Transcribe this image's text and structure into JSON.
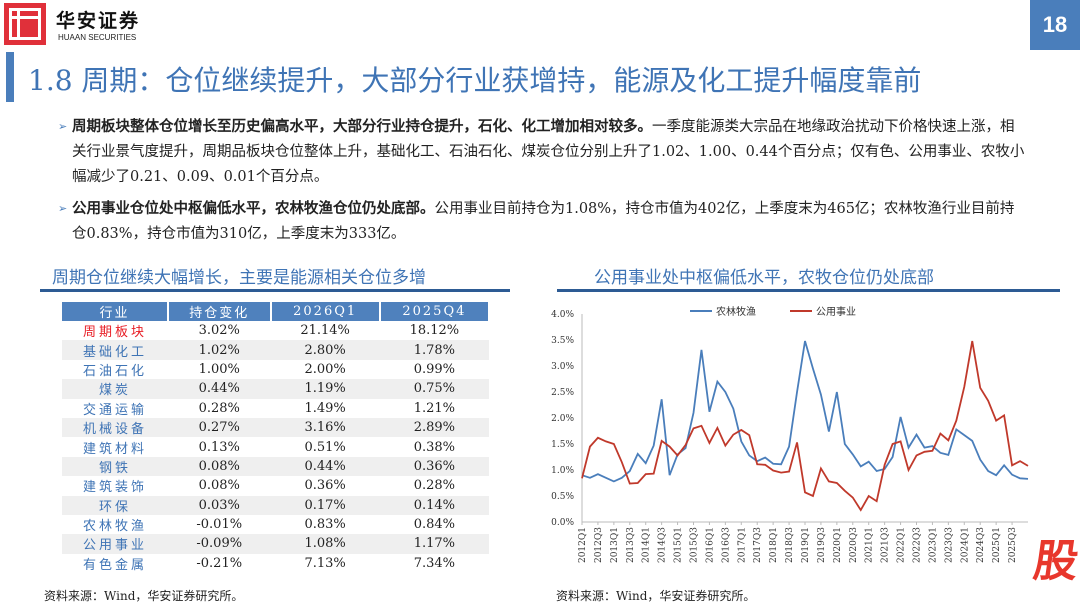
{
  "header": {
    "brand_cn": "华安证券",
    "brand_en": "HUAAN SECURITIES",
    "page_number": "18"
  },
  "title": "1.8 周期：仓位继续提升，大部分行业获增持，能源及化工提升幅度靠前",
  "bullets": [
    {
      "bold": "周期板块整体仓位增长至历史偏高水平，大部分行业持仓提升，石化、化工增加相对较多。",
      "text": "一季度能源类大宗品在地缘政治扰动下价格快速上涨，相关行业景气度提升，周期品板块仓位整体上升，基础化工、石油石化、煤炭仓位分别上升了1.02、1.00、0.44个百分点；仅有色、公用事业、农牧小幅减少了0.21、0.09、0.01个百分点。"
    },
    {
      "bold": "公用事业仓位处中枢偏低水平，农林牧渔仓位仍处底部。",
      "text": "公用事业目前持仓为1.08%，持仓市值为402亿，上季度末为465亿；农林牧渔行业目前持仓0.83%，持仓市值为310亿，上季度末为333亿。"
    }
  ],
  "left_section": {
    "title": "周期仓位继续大幅增长，主要是能源相关仓位多增",
    "source": "资料来源：Wind，华安证券研究所。"
  },
  "table": {
    "headers": [
      "行业",
      "持仓变化",
      "2026Q1",
      "2025Q4"
    ],
    "rows": [
      [
        "周期板块",
        "3.02%",
        "21.14%",
        "18.12%"
      ],
      [
        "基础化工",
        "1.02%",
        "2.80%",
        "1.78%"
      ],
      [
        "石油石化",
        "1.00%",
        "2.00%",
        "0.99%"
      ],
      [
        "煤炭",
        "0.44%",
        "1.19%",
        "0.75%"
      ],
      [
        "交通运输",
        "0.28%",
        "1.49%",
        "1.21%"
      ],
      [
        "机械设备",
        "0.27%",
        "3.16%",
        "2.89%"
      ],
      [
        "建筑材料",
        "0.13%",
        "0.51%",
        "0.38%"
      ],
      [
        "钢铁",
        "0.08%",
        "0.44%",
        "0.36%"
      ],
      [
        "建筑装饰",
        "0.08%",
        "0.36%",
        "0.28%"
      ],
      [
        "环保",
        "0.03%",
        "0.17%",
        "0.14%"
      ],
      [
        "农林牧渔",
        "-0.01%",
        "0.83%",
        "0.84%"
      ],
      [
        "公用事业",
        "-0.09%",
        "1.08%",
        "1.17%"
      ],
      [
        "有色金属",
        "-0.21%",
        "7.13%",
        "7.34%"
      ]
    ]
  },
  "right_section": {
    "title": "公用事业处中枢偏低水平，农牧仓位仍处底部",
    "source": "资料来源：Wind，华安证券研究所。"
  },
  "watermark": "股",
  "colors": {
    "accent": "#4a7ebb",
    "logo_red": "#e0303a",
    "highlight": "#e81c24"
  },
  "chart_data": {
    "type": "line",
    "start_quarter": "2012Q1",
    "x_tick_labels": [
      "2012Q1",
      "2012Q3",
      "2013Q1",
      "2013Q3",
      "2014Q1",
      "2014Q3",
      "2015Q1",
      "2015Q3",
      "2016Q1",
      "2016Q3",
      "2017Q1",
      "2017Q3",
      "2018Q1",
      "2018Q3",
      "2019Q1",
      "2019Q3",
      "2020Q1",
      "2020Q3",
      "2021Q1",
      "2021Q3",
      "2022Q1",
      "2022Q3",
      "2023Q1",
      "2023Q3",
      "2024Q1",
      "2024Q3",
      "2025Q1",
      "2025Q3"
    ],
    "y_ticks": [
      "0.0%",
      "0.5%",
      "1.0%",
      "1.5%",
      "2.0%",
      "2.5%",
      "3.0%",
      "3.5%",
      "4.0%"
    ],
    "ylim": [
      0,
      4.0
    ],
    "legend": "top-center",
    "grid": false,
    "series": [
      {
        "name": "农林牧渔",
        "color": "#4a7ebb",
        "values": [
          0.9,
          0.85,
          0.92,
          0.85,
          0.78,
          0.85,
          0.98,
          1.31,
          1.13,
          1.47,
          2.36,
          0.9,
          1.3,
          1.42,
          2.1,
          3.31,
          2.12,
          2.7,
          2.5,
          2.18,
          1.55,
          1.28,
          1.17,
          1.24,
          1.12,
          1.11,
          1.45,
          2.5,
          3.48,
          2.95,
          2.45,
          1.74,
          2.5,
          1.5,
          1.3,
          1.07,
          1.16,
          0.98,
          1.02,
          1.25,
          2.02,
          1.43,
          1.68,
          1.43,
          1.46,
          1.33,
          1.29,
          1.78,
          1.67,
          1.56,
          1.2,
          0.98,
          0.9,
          1.09,
          0.91,
          0.84,
          0.83
        ]
      },
      {
        "name": "公用事业",
        "color": "#c0392b",
        "values": [
          0.84,
          1.45,
          1.62,
          1.55,
          1.5,
          1.15,
          0.74,
          0.75,
          0.92,
          0.93,
          1.56,
          1.45,
          1.28,
          1.48,
          1.8,
          1.85,
          1.52,
          1.81,
          1.47,
          1.68,
          1.77,
          1.67,
          1.11,
          1.1,
          0.99,
          0.95,
          0.97,
          1.53,
          0.57,
          0.5,
          1.03,
          0.78,
          0.75,
          0.6,
          0.47,
          0.23,
          0.5,
          0.4,
          1.1,
          1.5,
          1.55,
          1.0,
          1.28,
          1.35,
          1.37,
          1.7,
          1.57,
          1.95,
          2.6,
          3.48,
          2.58,
          2.33,
          1.95,
          2.05,
          1.09,
          1.17,
          1.08
        ]
      }
    ]
  }
}
